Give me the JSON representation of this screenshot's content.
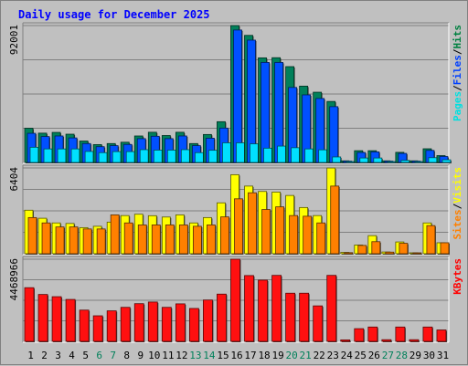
{
  "chart_data": {
    "type": "bar",
    "title": "Daily usage for December 2025",
    "categories": [
      "1",
      "2",
      "3",
      "4",
      "5",
      "6",
      "7",
      "8",
      "9",
      "10",
      "11",
      "12",
      "13",
      "14",
      "15",
      "16",
      "17",
      "18",
      "19",
      "20",
      "21",
      "22",
      "23",
      "24",
      "25",
      "26",
      "27",
      "28",
      "29",
      "30",
      "31"
    ],
    "weekend_days": [
      "6",
      "7",
      "13",
      "14",
      "20",
      "21",
      "27",
      "28"
    ],
    "panels": [
      {
        "id": "hits-files-pages",
        "ymax_label": "92001",
        "ymax": 92001,
        "legend": [
          {
            "label": "Pages",
            "color": "#00e0e0"
          },
          {
            "label": "/",
            "color": "#000000"
          },
          {
            "label": "Files",
            "color": "#0040ff"
          },
          {
            "label": "/",
            "color": "#000000"
          },
          {
            "label": "Hits",
            "color": "#008040"
          }
        ],
        "series": [
          {
            "name": "Hits",
            "color": "#00805a",
            "values": [
              23000,
              19700,
              20200,
              19000,
              14400,
              12000,
              12700,
              13600,
              17800,
              20300,
              18100,
              20300,
              12700,
              18800,
              27400,
              92001,
              85400,
              70300,
              70400,
              64400,
              51300,
              47200,
              41000,
              1100,
              7900,
              7900,
              1100,
              6800,
              1100,
              9200,
              4600
            ]
          },
          {
            "name": "Files",
            "color": "#0050ff",
            "values": [
              19600,
              17400,
              17800,
              16500,
              12700,
              10600,
              11300,
              12100,
              16000,
              17600,
              16000,
              17800,
              11300,
              16300,
              23100,
              89000,
              82200,
              67200,
              67200,
              50400,
              45400,
              43000,
              37500,
              900,
              6700,
              7100,
              900,
              6100,
              900,
              8100,
              4000
            ]
          },
          {
            "name": "Pages",
            "color": "#00e0ff",
            "values": [
              10200,
              9100,
              9100,
              9100,
              7400,
              6600,
              7300,
              7300,
              8600,
              8300,
              8300,
              8600,
              6600,
              8200,
              13200,
              13200,
              12500,
              9600,
              11000,
              9900,
              9100,
              8500,
              3700,
              500,
              3000,
              3000,
              500,
              1400,
              500,
              3200,
              1800
            ]
          }
        ]
      },
      {
        "id": "visits-sites",
        "ymax_label": "6404",
        "ymax": 6404,
        "legend": [
          {
            "label": "Sites",
            "color": "#ff8000"
          },
          {
            "label": "/",
            "color": "#000000"
          },
          {
            "label": "Visits",
            "color": "#ffff00"
          }
        ],
        "series": [
          {
            "name": "Visits",
            "color": "#ffff00",
            "values": [
              3250,
              2650,
              2300,
              2260,
              1950,
              2050,
              2360,
              2850,
              2950,
              2840,
              2740,
              2900,
              2300,
              2700,
              3800,
              5900,
              5050,
              4650,
              4600,
              4350,
              3450,
              2850,
              6400,
              100,
              650,
              1350,
              130,
              880,
              60,
              2300,
              820
            ]
          },
          {
            "name": "Sites",
            "color": "#ff8000",
            "values": [
              2700,
              2300,
              2000,
              2000,
              1850,
              1850,
              2900,
              2300,
              2150,
              2150,
              2150,
              2150,
              2050,
              2150,
              2750,
              4100,
              4550,
              3300,
              3500,
              2850,
              2800,
              2300,
              5050,
              80,
              620,
              900,
              120,
              780,
              60,
              2100,
              820
            ]
          }
        ]
      },
      {
        "id": "kbytes",
        "ymax_label": "4468966",
        "ymax": 4468966,
        "legend": [
          {
            "label": "KBytes",
            "color": "#ff0000"
          }
        ],
        "series": [
          {
            "name": "KBytes",
            "color": "#ff1010",
            "values": [
              2920000,
              2550000,
              2430000,
              2280000,
              1700000,
              1390000,
              1660000,
              1850000,
              2050000,
              2140000,
              1850000,
              2040000,
              1790000,
              2250000,
              2570000,
              4468966,
              3580000,
              3330000,
              3590000,
              2620000,
              2620000,
              1930000,
              3590000,
              80000,
              690000,
              780000,
              90000,
              780000,
              90000,
              780000,
              620000
            ]
          }
        ]
      }
    ]
  }
}
